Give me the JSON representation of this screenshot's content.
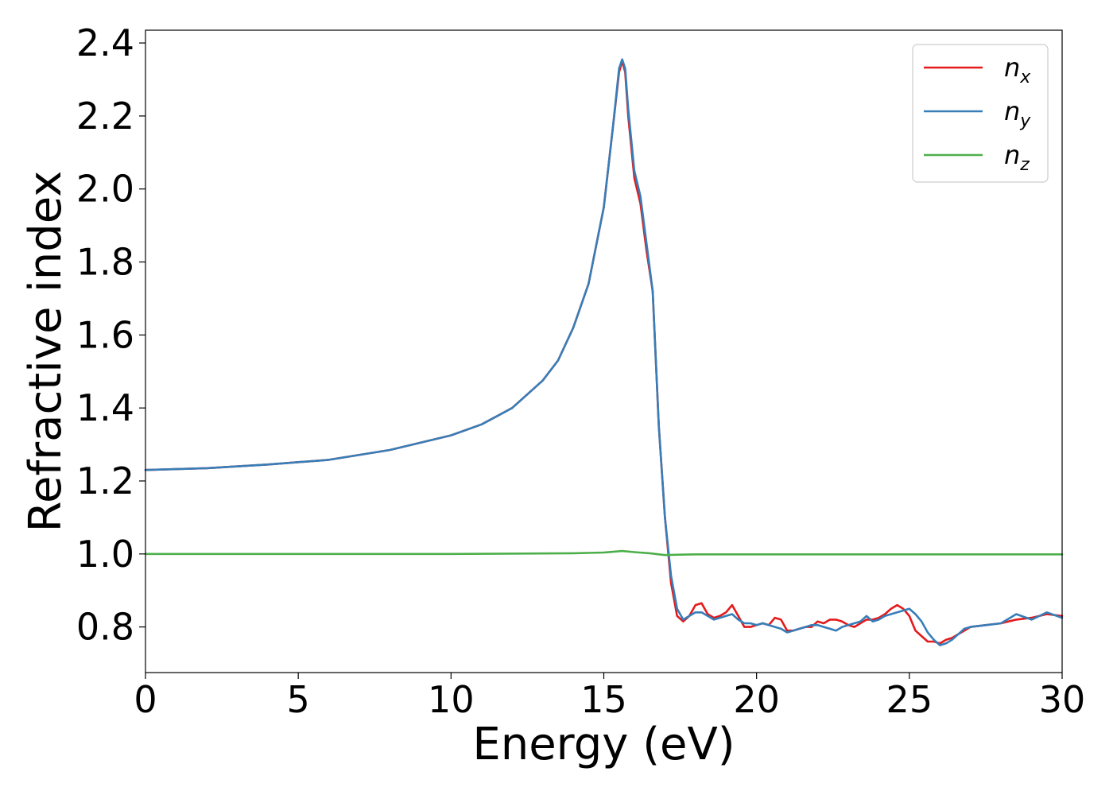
{
  "chart_data": {
    "type": "line",
    "xlabel": "Energy (eV)",
    "ylabel": "Refractive index",
    "xlim": [
      0,
      30
    ],
    "ylim": [
      0.675,
      2.435
    ],
    "xticks": [
      "0",
      "5",
      "10",
      "15",
      "20",
      "25",
      "30"
    ],
    "yticks": [
      "0.8",
      "1.0",
      "1.2",
      "1.4",
      "1.6",
      "1.8",
      "2.0",
      "2.2",
      "2.4"
    ],
    "legend_position": "top-right",
    "grid": false,
    "series": [
      {
        "name": "n",
        "subscript": "x",
        "color": "#e41a1c",
        "points": [
          [
            0,
            1.23
          ],
          [
            2,
            1.235
          ],
          [
            4,
            1.245
          ],
          [
            6,
            1.258
          ],
          [
            8,
            1.285
          ],
          [
            10,
            1.325
          ],
          [
            11,
            1.355
          ],
          [
            12,
            1.4
          ],
          [
            13,
            1.475
          ],
          [
            13.5,
            1.53
          ],
          [
            14,
            1.62
          ],
          [
            14.5,
            1.74
          ],
          [
            15,
            1.95
          ],
          [
            15.3,
            2.17
          ],
          [
            15.5,
            2.32
          ],
          [
            15.6,
            2.35
          ],
          [
            15.7,
            2.32
          ],
          [
            15.8,
            2.2
          ],
          [
            16,
            2.03
          ],
          [
            16.2,
            1.96
          ],
          [
            16.4,
            1.83
          ],
          [
            16.6,
            1.72
          ],
          [
            16.8,
            1.35
          ],
          [
            17,
            1.1
          ],
          [
            17.2,
            0.92
          ],
          [
            17.4,
            0.83
          ],
          [
            17.6,
            0.815
          ],
          [
            17.8,
            0.83
          ],
          [
            18,
            0.86
          ],
          [
            18.2,
            0.865
          ],
          [
            18.4,
            0.835
          ],
          [
            18.6,
            0.825
          ],
          [
            18.8,
            0.83
          ],
          [
            19,
            0.84
          ],
          [
            19.2,
            0.86
          ],
          [
            19.4,
            0.83
          ],
          [
            19.6,
            0.8
          ],
          [
            19.8,
            0.8
          ],
          [
            20,
            0.805
          ],
          [
            20.2,
            0.81
          ],
          [
            20.4,
            0.805
          ],
          [
            20.6,
            0.825
          ],
          [
            20.8,
            0.82
          ],
          [
            21,
            0.79
          ],
          [
            21.2,
            0.79
          ],
          [
            21.4,
            0.795
          ],
          [
            21.6,
            0.8
          ],
          [
            21.8,
            0.8
          ],
          [
            22,
            0.815
          ],
          [
            22.2,
            0.81
          ],
          [
            22.4,
            0.82
          ],
          [
            22.6,
            0.82
          ],
          [
            22.8,
            0.815
          ],
          [
            23,
            0.805
          ],
          [
            23.2,
            0.8
          ],
          [
            23.4,
            0.81
          ],
          [
            23.6,
            0.82
          ],
          [
            23.8,
            0.82
          ],
          [
            24,
            0.825
          ],
          [
            24.2,
            0.835
          ],
          [
            24.4,
            0.85
          ],
          [
            24.6,
            0.86
          ],
          [
            24.8,
            0.85
          ],
          [
            25,
            0.83
          ],
          [
            25.2,
            0.79
          ],
          [
            25.4,
            0.775
          ],
          [
            25.6,
            0.76
          ],
          [
            25.8,
            0.76
          ],
          [
            26,
            0.755
          ],
          [
            26.2,
            0.765
          ],
          [
            26.4,
            0.77
          ],
          [
            26.6,
            0.78
          ],
          [
            26.8,
            0.79
          ],
          [
            27,
            0.8
          ],
          [
            27.5,
            0.805
          ],
          [
            28,
            0.81
          ],
          [
            28.5,
            0.82
          ],
          [
            29,
            0.825
          ],
          [
            29.5,
            0.835
          ],
          [
            30,
            0.83
          ]
        ]
      },
      {
        "name": "n",
        "subscript": "y",
        "color": "#377eb8",
        "points": [
          [
            0,
            1.23
          ],
          [
            2,
            1.235
          ],
          [
            4,
            1.245
          ],
          [
            6,
            1.258
          ],
          [
            8,
            1.285
          ],
          [
            10,
            1.325
          ],
          [
            11,
            1.355
          ],
          [
            12,
            1.4
          ],
          [
            13,
            1.475
          ],
          [
            13.5,
            1.53
          ],
          [
            14,
            1.62
          ],
          [
            14.5,
            1.74
          ],
          [
            15,
            1.95
          ],
          [
            15.3,
            2.17
          ],
          [
            15.5,
            2.33
          ],
          [
            15.6,
            2.355
          ],
          [
            15.7,
            2.33
          ],
          [
            15.8,
            2.22
          ],
          [
            16,
            2.05
          ],
          [
            16.2,
            1.98
          ],
          [
            16.4,
            1.85
          ],
          [
            16.6,
            1.72
          ],
          [
            16.8,
            1.35
          ],
          [
            17,
            1.1
          ],
          [
            17.2,
            0.94
          ],
          [
            17.4,
            0.85
          ],
          [
            17.6,
            0.82
          ],
          [
            17.8,
            0.83
          ],
          [
            18,
            0.84
          ],
          [
            18.2,
            0.84
          ],
          [
            18.4,
            0.83
          ],
          [
            18.6,
            0.82
          ],
          [
            18.8,
            0.825
          ],
          [
            19,
            0.83
          ],
          [
            19.2,
            0.835
          ],
          [
            19.4,
            0.82
          ],
          [
            19.6,
            0.81
          ],
          [
            19.8,
            0.81
          ],
          [
            20,
            0.805
          ],
          [
            20.2,
            0.81
          ],
          [
            20.4,
            0.805
          ],
          [
            20.6,
            0.8
          ],
          [
            20.8,
            0.795
          ],
          [
            21,
            0.785
          ],
          [
            21.2,
            0.79
          ],
          [
            21.4,
            0.795
          ],
          [
            21.6,
            0.8
          ],
          [
            21.8,
            0.805
          ],
          [
            22,
            0.805
          ],
          [
            22.2,
            0.8
          ],
          [
            22.4,
            0.795
          ],
          [
            22.6,
            0.79
          ],
          [
            22.8,
            0.8
          ],
          [
            23,
            0.805
          ],
          [
            23.2,
            0.81
          ],
          [
            23.4,
            0.815
          ],
          [
            23.6,
            0.83
          ],
          [
            23.8,
            0.815
          ],
          [
            24,
            0.82
          ],
          [
            24.2,
            0.83
          ],
          [
            24.4,
            0.835
          ],
          [
            24.6,
            0.84
          ],
          [
            24.8,
            0.845
          ],
          [
            25,
            0.85
          ],
          [
            25.2,
            0.835
          ],
          [
            25.4,
            0.815
          ],
          [
            25.6,
            0.785
          ],
          [
            25.8,
            0.765
          ],
          [
            26,
            0.75
          ],
          [
            26.2,
            0.755
          ],
          [
            26.4,
            0.765
          ],
          [
            26.6,
            0.78
          ],
          [
            26.8,
            0.795
          ],
          [
            27,
            0.8
          ],
          [
            27.5,
            0.805
          ],
          [
            28,
            0.81
          ],
          [
            28.5,
            0.835
          ],
          [
            29,
            0.82
          ],
          [
            29.5,
            0.84
          ],
          [
            30,
            0.825
          ]
        ]
      },
      {
        "name": "n",
        "subscript": "z",
        "color": "#4daf4a",
        "points": [
          [
            0,
            1.0
          ],
          [
            5,
            1.0
          ],
          [
            10,
            1.0
          ],
          [
            14,
            1.002
          ],
          [
            15,
            1.004
          ],
          [
            15.6,
            1.008
          ],
          [
            16,
            1.005
          ],
          [
            16.5,
            1.002
          ],
          [
            17,
            0.997
          ],
          [
            17.5,
            0.998
          ],
          [
            18,
            0.999
          ],
          [
            20,
            0.999
          ],
          [
            25,
            0.999
          ],
          [
            30,
            0.999
          ]
        ]
      }
    ]
  }
}
